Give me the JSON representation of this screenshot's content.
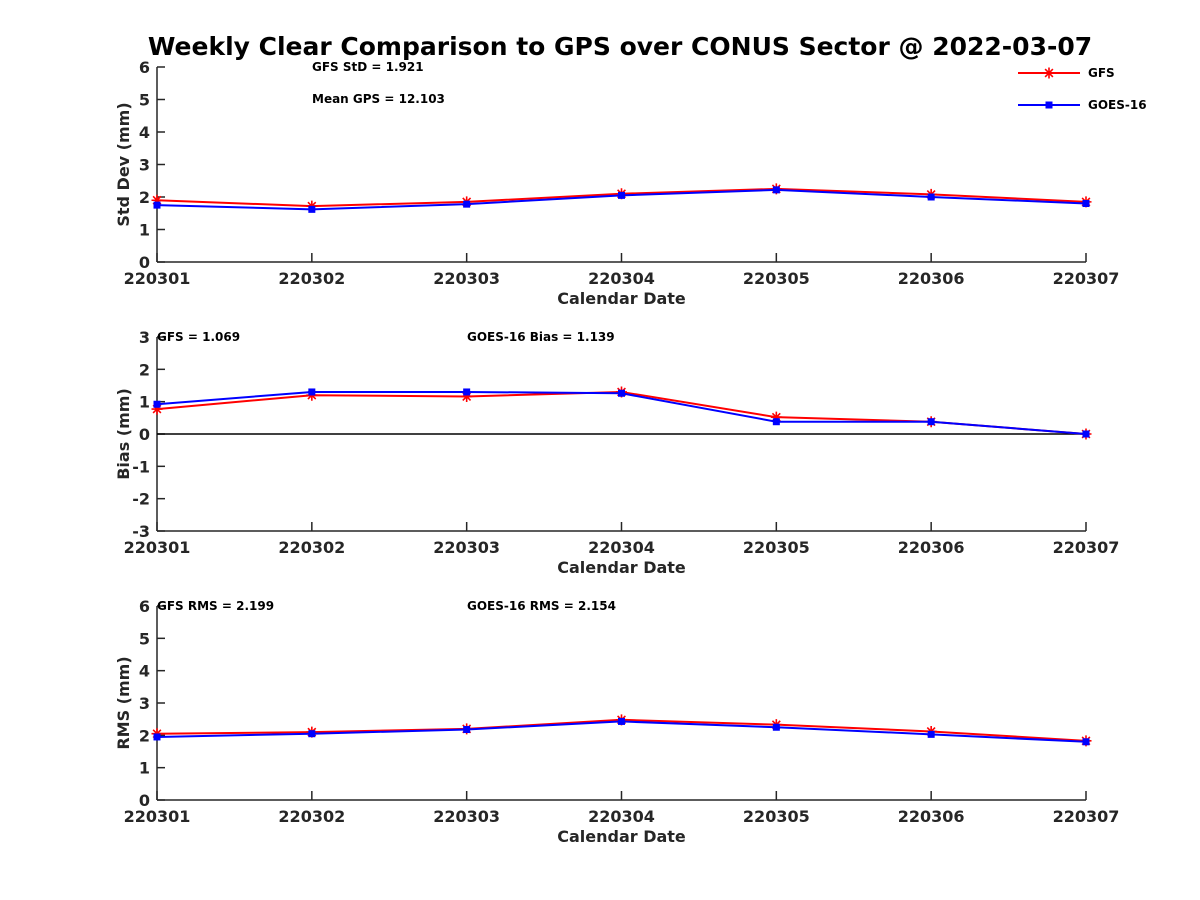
{
  "title": "Weekly Clear Comparison to GPS over CONUS Sector @ 2022-03-07",
  "legend": {
    "placement": "top-right",
    "entries": [
      {
        "label": "GFS",
        "color": "#ff0000",
        "marker": "asterisk"
      },
      {
        "label": "GOES-16",
        "color": "#0000ff",
        "marker": "square"
      }
    ]
  },
  "chart_data": [
    {
      "type": "line",
      "categories": [
        "220301",
        "220302",
        "220303",
        "220304",
        "220305",
        "220306",
        "220307"
      ],
      "xlabel": "Calendar Date",
      "ylabel": "Std Dev (mm)",
      "ylim": [
        0,
        6
      ],
      "yticks": [
        "0",
        "1",
        "2",
        "3",
        "4",
        "5",
        "6"
      ],
      "zero_line": false,
      "annotations": [
        "GFS StD = 1.921",
        "Mean GPS = 12.103"
      ],
      "series": [
        {
          "name": "GFS",
          "color": "#ff0000",
          "marker": "asterisk",
          "values": [
            1.9,
            1.72,
            1.85,
            2.1,
            2.25,
            2.08,
            1.85
          ]
        },
        {
          "name": "GOES-16",
          "color": "#0000ff",
          "marker": "square",
          "values": [
            1.75,
            1.62,
            1.78,
            2.05,
            2.22,
            2.0,
            1.8
          ]
        }
      ]
    },
    {
      "type": "line",
      "categories": [
        "220301",
        "220302",
        "220303",
        "220304",
        "220305",
        "220306",
        "220307"
      ],
      "xlabel": "Calendar Date",
      "ylabel": "Bias (mm)",
      "ylim": [
        -3,
        3
      ],
      "yticks": [
        "-3",
        "-2",
        "-1",
        "0",
        "1",
        "2",
        "3"
      ],
      "zero_line": true,
      "annotations": [
        "GFS = 1.069",
        "GOES-16 Bias  = 1.139"
      ],
      "series": [
        {
          "name": "GFS",
          "color": "#ff0000",
          "marker": "asterisk",
          "values": [
            0.77,
            1.2,
            1.16,
            1.3,
            0.52,
            0.38,
            0.0
          ]
        },
        {
          "name": "GOES-16",
          "color": "#0000ff",
          "marker": "square",
          "values": [
            0.92,
            1.3,
            1.3,
            1.26,
            0.38,
            0.38,
            0.0
          ]
        }
      ]
    },
    {
      "type": "line",
      "categories": [
        "220301",
        "220302",
        "220303",
        "220304",
        "220305",
        "220306",
        "220307"
      ],
      "xlabel": "Calendar Date",
      "ylabel": "RMS (mm)",
      "ylim": [
        0,
        6
      ],
      "yticks": [
        "0",
        "1",
        "2",
        "3",
        "4",
        "5",
        "6"
      ],
      "zero_line": false,
      "annotations": [
        "GFS RMS = 2.199",
        "GOES-16 RMS = 2.154"
      ],
      "series": [
        {
          "name": "GFS",
          "color": "#ff0000",
          "marker": "asterisk",
          "values": [
            2.05,
            2.1,
            2.2,
            2.48,
            2.33,
            2.12,
            1.83
          ]
        },
        {
          "name": "GOES-16",
          "color": "#0000ff",
          "marker": "square",
          "values": [
            1.95,
            2.05,
            2.18,
            2.43,
            2.25,
            2.03,
            1.8
          ]
        }
      ]
    }
  ]
}
